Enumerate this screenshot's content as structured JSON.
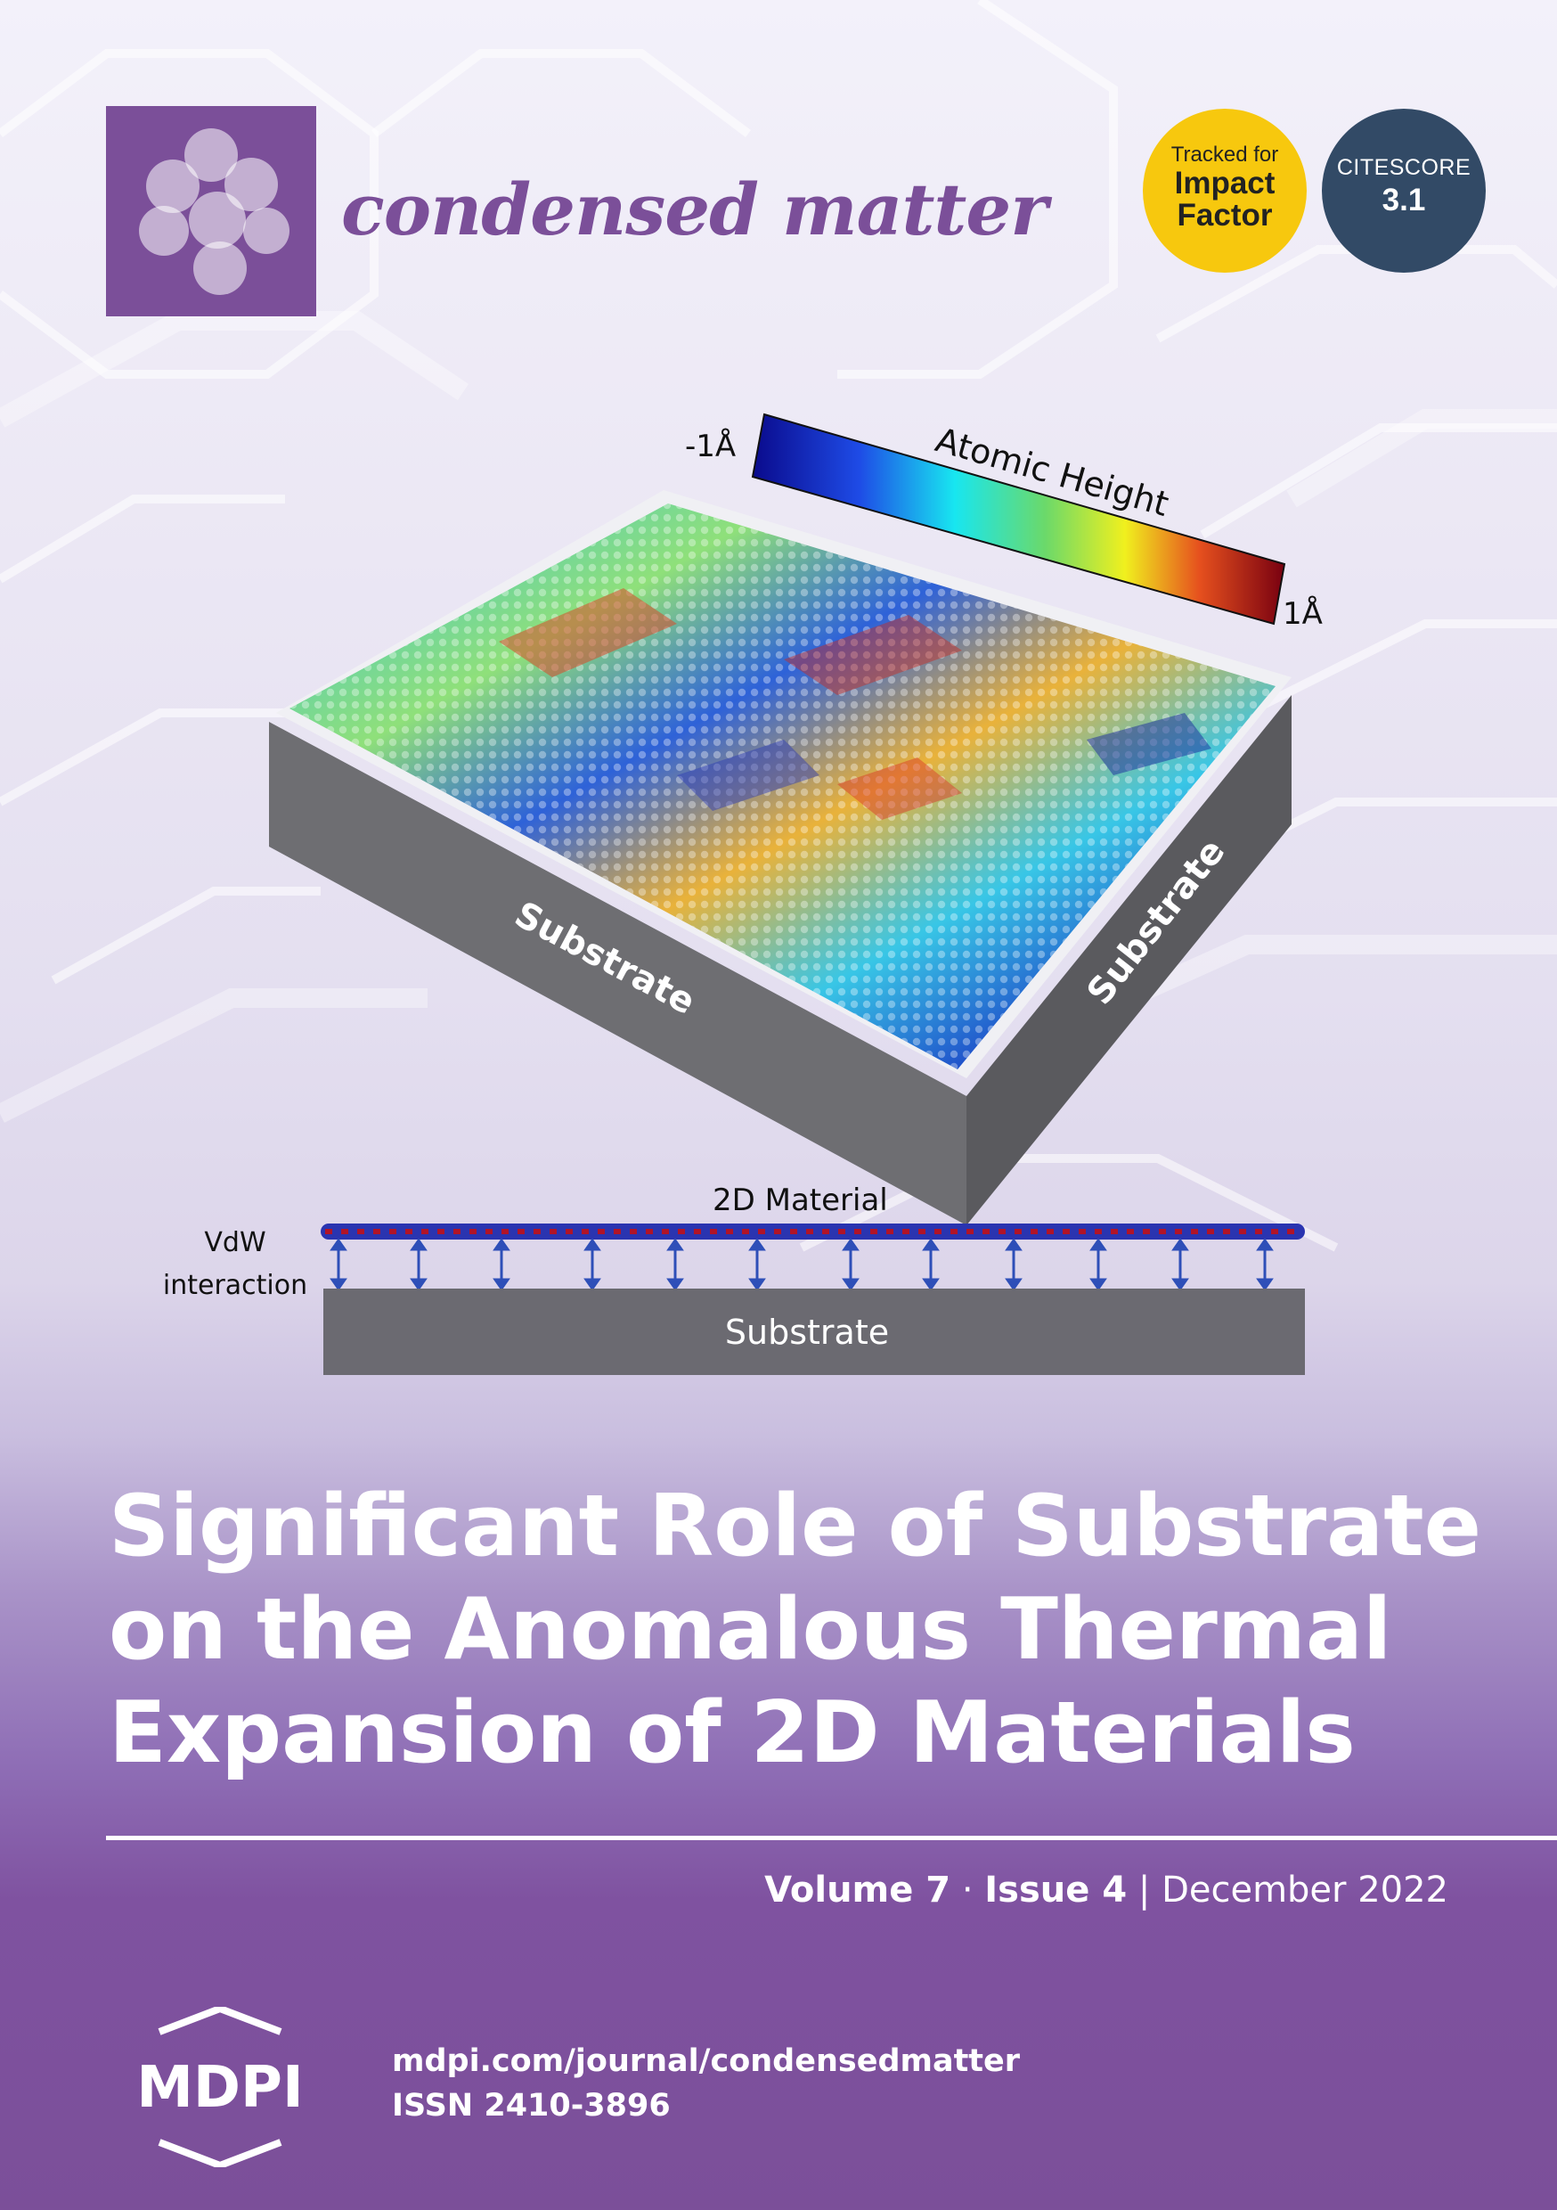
{
  "journal": {
    "name": "condensed matter"
  },
  "badges": {
    "impact": {
      "tracked": "Tracked for",
      "line1": "Impact",
      "line2": "Factor",
      "color": "#f7c80e"
    },
    "citescore": {
      "label": "CITESCORE",
      "value": "3.1",
      "color": "#324a66"
    }
  },
  "figure": {
    "scale_min": "-1Å",
    "scale_max": "1Å",
    "scale_label": "Atomic Height",
    "substrate_front": "Substrate",
    "substrate_side": "Substrate",
    "material_label": "2D Material",
    "vdw_line1": "VdW",
    "vdw_line2": "interaction",
    "substrate_bottom": "Substrate"
  },
  "article": {
    "title_lines": [
      "Significant Role of Substrate",
      "on the Anomalous Thermal",
      "Expansion of 2D Materials"
    ]
  },
  "issue": {
    "volume": "Volume 7",
    "issue": "Issue 4",
    "date": "December 2022"
  },
  "publisher": {
    "logo_text": "MDPI",
    "url": "mdpi.com/journal/condensedmatter",
    "issn": "ISSN 2410-3896"
  },
  "colors": {
    "brand_purple": "#7b4f99",
    "citescore_navy": "#324a66",
    "impact_yellow": "#f7c80e"
  }
}
